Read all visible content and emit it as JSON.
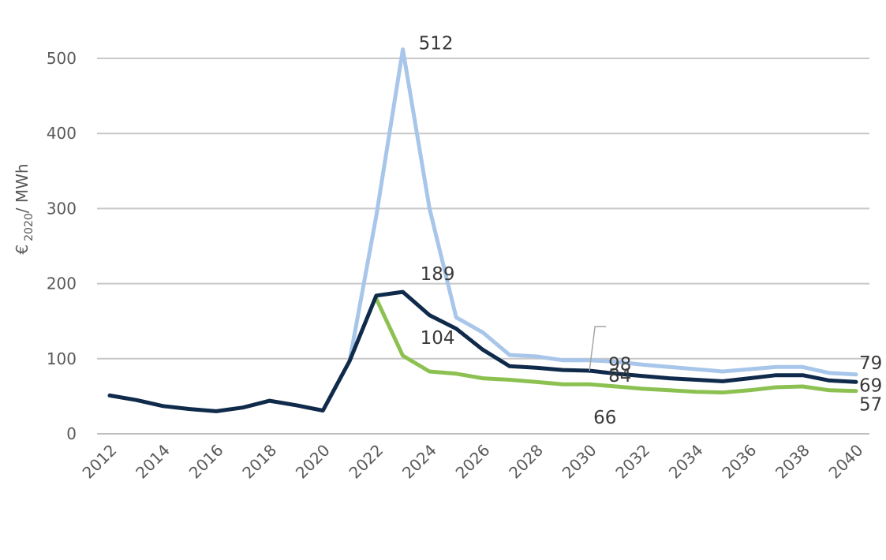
{
  "chart_data": {
    "type": "line",
    "title": "",
    "xlabel": "",
    "ylabel": {
      "prefix": "€",
      "subscript": "2020",
      "suffix": "/ MWh"
    },
    "ylim": [
      0,
      500
    ],
    "yticks": [
      0,
      100,
      200,
      300,
      400,
      500
    ],
    "x": [
      2012,
      2013,
      2014,
      2015,
      2016,
      2017,
      2018,
      2019,
      2020,
      2021,
      2022,
      2023,
      2024,
      2025,
      2026,
      2027,
      2028,
      2029,
      2030,
      2031,
      2032,
      2033,
      2034,
      2035,
      2036,
      2037,
      2038,
      2039,
      2040
    ],
    "xticks": [
      2012,
      2014,
      2016,
      2018,
      2020,
      2022,
      2024,
      2026,
      2028,
      2030,
      2032,
      2034,
      2036,
      2038,
      2040
    ],
    "grid": true,
    "legend": "none",
    "series": [
      {
        "color": "#a7c6e9",
        "values": [
          null,
          null,
          null,
          null,
          null,
          null,
          null,
          null,
          null,
          97,
          290,
          512,
          300,
          155,
          135,
          105,
          103,
          98,
          98,
          96,
          92,
          89,
          86,
          83,
          86,
          89,
          89,
          81,
          79
        ]
      },
      {
        "color": "#8cc152",
        "values": [
          null,
          null,
          null,
          null,
          null,
          null,
          null,
          null,
          null,
          null,
          180,
          104,
          83,
          80,
          74,
          72,
          69,
          66,
          66,
          63,
          60,
          58,
          56,
          55,
          58,
          62,
          63,
          58,
          57
        ]
      },
      {
        "color": "#0f2a4a",
        "values": [
          51,
          45,
          37,
          33,
          30,
          35,
          44,
          38,
          31,
          97,
          184,
          189,
          158,
          140,
          112,
          90,
          88,
          85,
          84,
          80,
          77,
          74,
          72,
          70,
          74,
          78,
          78,
          71,
          69
        ]
      }
    ],
    "data_labels": [
      {
        "text": "512",
        "x": 2023,
        "y": 512
      },
      {
        "text": "189",
        "x": 2023,
        "y": 189
      },
      {
        "text": "104",
        "x": 2023,
        "y": 104
      },
      {
        "text": "98",
        "x": 2030,
        "y": 98
      },
      {
        "text": "84",
        "x": 2030,
        "y": 84
      },
      {
        "text": "66",
        "x": 2030,
        "y": 66
      },
      {
        "text": "79",
        "x": 2040,
        "y": 79
      },
      {
        "text": "69",
        "x": 2040,
        "y": 69
      },
      {
        "text": "57",
        "x": 2040,
        "y": 57
      }
    ]
  }
}
